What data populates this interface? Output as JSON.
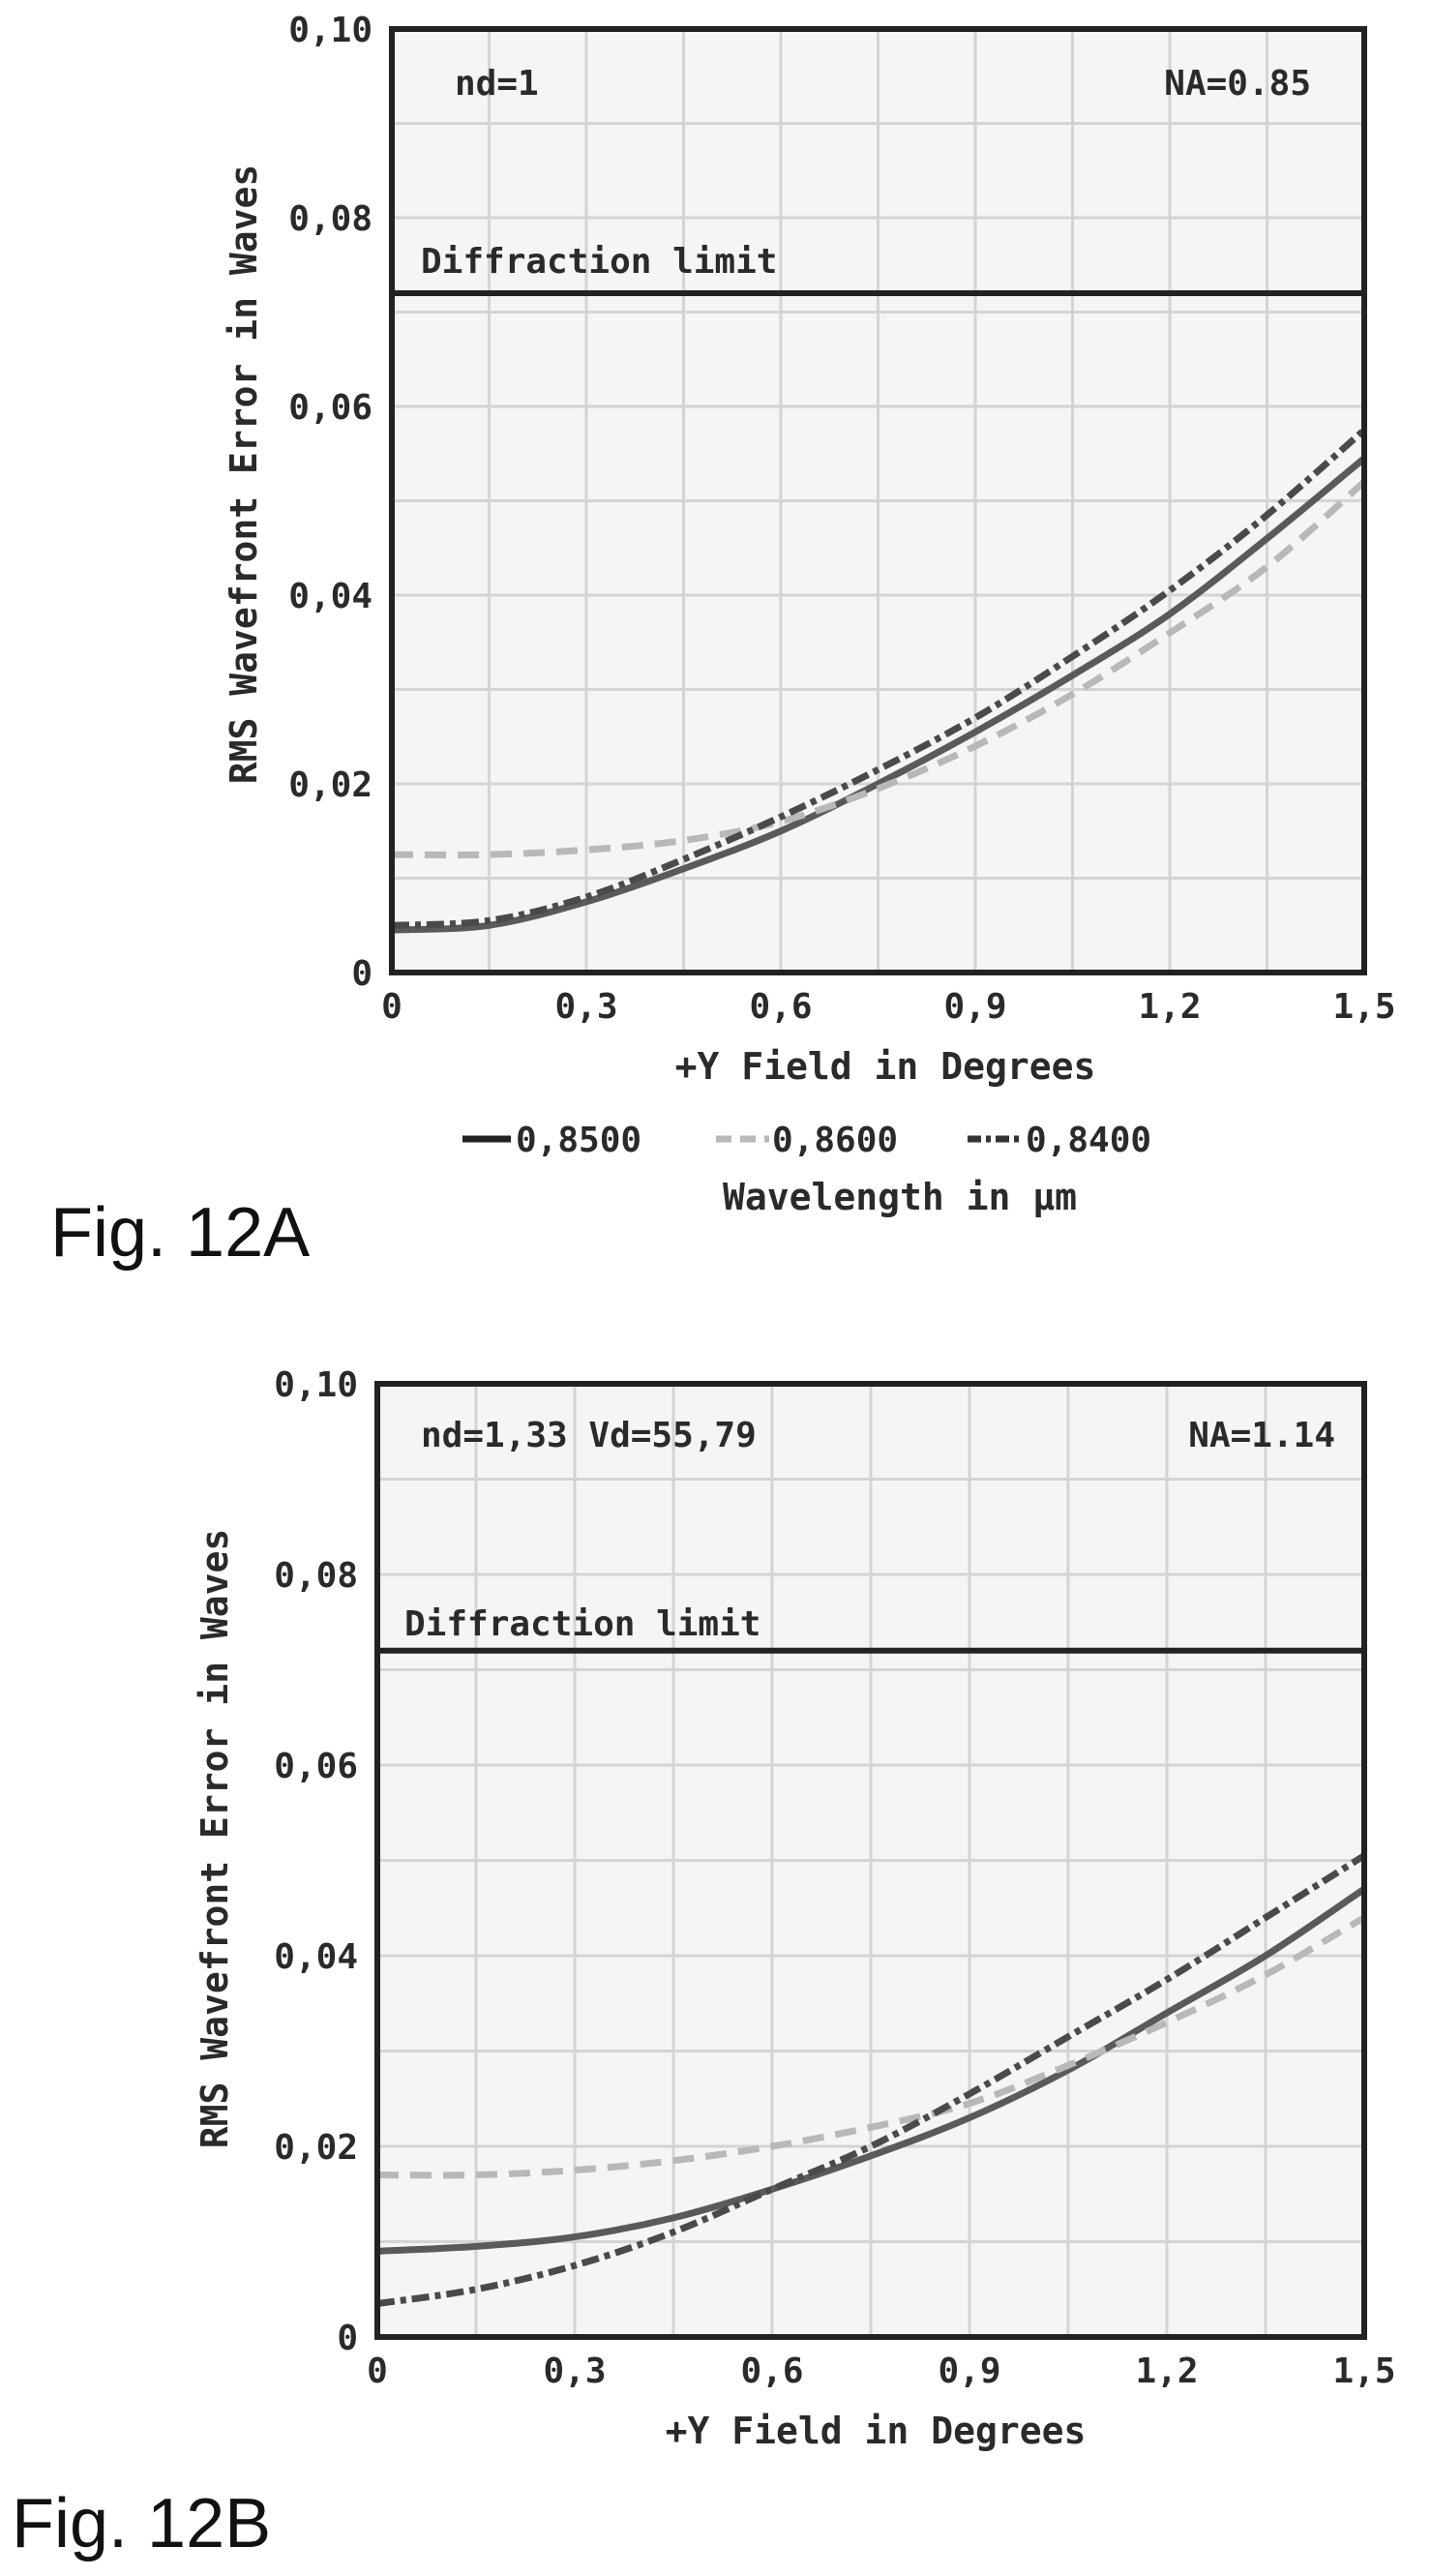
{
  "figures": [
    {
      "caption": "Fig. 12A",
      "annotations": {
        "top_left": "nd=1",
        "top_right": "NA=0.85",
        "limit_label": "Diffraction limit"
      },
      "legend_title": "Wavelength in µm"
    },
    {
      "caption": "Fig. 12B",
      "annotations": {
        "top_left": "nd=1,33 Vd=55,79",
        "top_right": "NA=1.14",
        "limit_label": "Diffraction limit"
      },
      "legend_title": ""
    }
  ],
  "chart_data": [
    {
      "type": "line",
      "title": "",
      "xlabel": "+Y Field in Degrees",
      "ylabel": "RMS Wavefront Error in Waves",
      "xlim": [
        0,
        1.5
      ],
      "ylim": [
        0,
        0.1
      ],
      "x_ticks": [
        "0",
        "0,3",
        "0,6",
        "0,9",
        "1,2",
        "1,5"
      ],
      "y_ticks": [
        "0",
        "0,02",
        "0,04",
        "0,06",
        "0,08",
        "0,10"
      ],
      "grid": true,
      "legend_position": "bottom",
      "diffraction_limit": 0.072,
      "x": [
        0,
        0.15,
        0.3,
        0.45,
        0.6,
        0.75,
        0.9,
        1.05,
        1.2,
        1.35,
        1.5
      ],
      "series": [
        {
          "name": "0,8500",
          "color": "#5a5a5a",
          "dash": "solid",
          "values": [
            0.0045,
            0.005,
            0.0075,
            0.011,
            0.015,
            0.02,
            0.0255,
            0.0315,
            0.038,
            0.046,
            0.0545
          ]
        },
        {
          "name": "0,8600",
          "color": "#b8b8b8",
          "dash": "dashed",
          "values": [
            0.0125,
            0.0125,
            0.013,
            0.014,
            0.016,
            0.0195,
            0.024,
            0.0295,
            0.036,
            0.043,
            0.052
          ]
        },
        {
          "name": "0,8400",
          "color": "#4a4a4a",
          "dash": "dashdot",
          "values": [
            0.005,
            0.0055,
            0.008,
            0.012,
            0.0165,
            0.0215,
            0.027,
            0.0335,
            0.0405,
            0.0485,
            0.0575
          ]
        }
      ]
    },
    {
      "type": "line",
      "title": "",
      "xlabel": "+Y Field in Degrees",
      "ylabel": "RMS Wavefront Error in Waves",
      "xlim": [
        0,
        1.5
      ],
      "ylim": [
        0,
        0.1
      ],
      "x_ticks": [
        "0",
        "0,3",
        "0,6",
        "0,9",
        "1,2",
        "1,5"
      ],
      "y_ticks": [
        "0",
        "0,02",
        "0,04",
        "0,06",
        "0,08",
        "0,10"
      ],
      "grid": true,
      "legend_position": "",
      "diffraction_limit": 0.072,
      "x": [
        0,
        0.15,
        0.3,
        0.45,
        0.6,
        0.75,
        0.9,
        1.05,
        1.2,
        1.35,
        1.5
      ],
      "series": [
        {
          "name": "",
          "color": "#5a5a5a",
          "dash": "solid",
          "values": [
            0.009,
            0.0095,
            0.0105,
            0.0125,
            0.0155,
            0.019,
            0.023,
            0.028,
            0.034,
            0.04,
            0.047
          ]
        },
        {
          "name": "",
          "color": "#b8b8b8",
          "dash": "dashed",
          "values": [
            0.017,
            0.017,
            0.0175,
            0.0185,
            0.02,
            0.022,
            0.0245,
            0.0285,
            0.033,
            0.038,
            0.044
          ]
        },
        {
          "name": "",
          "color": "#4a4a4a",
          "dash": "dashdot",
          "values": [
            0.0035,
            0.005,
            0.0075,
            0.011,
            0.0155,
            0.02,
            0.0255,
            0.0315,
            0.0375,
            0.044,
            0.0505
          ]
        }
      ]
    }
  ]
}
